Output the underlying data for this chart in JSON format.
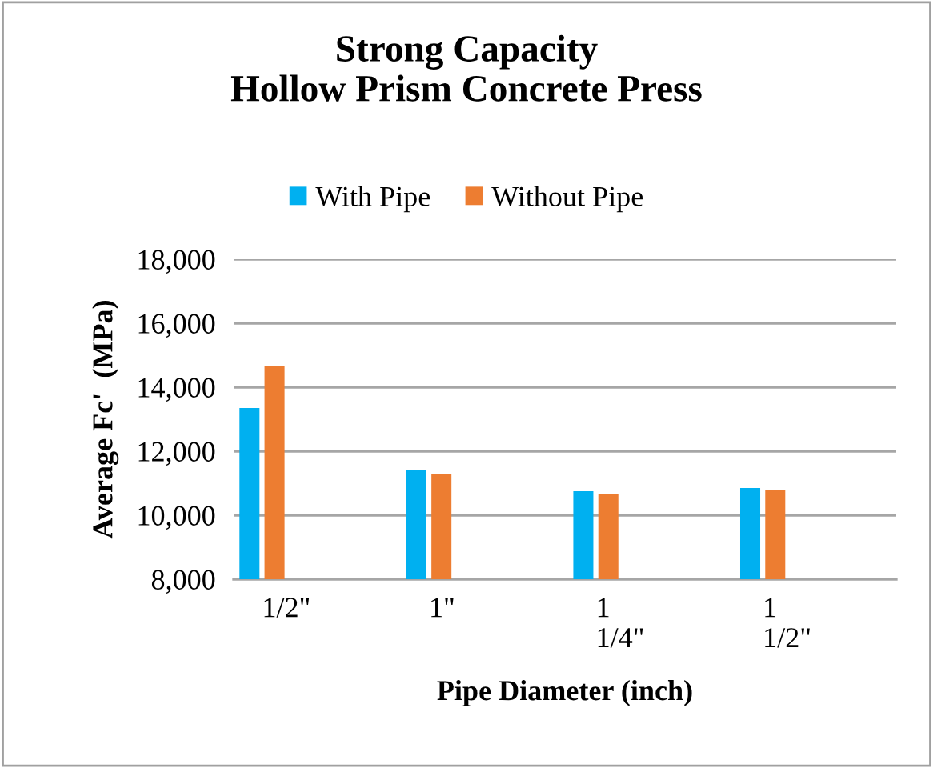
{
  "chart_data": {
    "type": "bar",
    "title": "Strong Capacity\nHollow Prism Concrete Press",
    "xlabel": "Pipe Diameter (inch)",
    "ylabel": "Average Fc'  (MPa)",
    "categories": [
      "1/2\"",
      "1\"",
      "1\n1/4\"",
      "1\n1/2\""
    ],
    "series": [
      {
        "name": "With Pipe",
        "color": "#00b0f0",
        "values": [
          13350,
          11400,
          10750,
          10850
        ]
      },
      {
        "name": "Without Pipe",
        "color": "#ed7d31",
        "values": [
          14650,
          11300,
          10650,
          10800
        ]
      }
    ],
    "ylim": [
      8000,
      18000
    ],
    "yticks": [
      {
        "value": 8000,
        "label": "8,000"
      },
      {
        "value": 10000,
        "label": "10,000"
      },
      {
        "value": 12000,
        "label": "12,000"
      },
      {
        "value": 14000,
        "label": "14,000"
      },
      {
        "value": 16000,
        "label": "16,000"
      },
      {
        "value": 18000,
        "label": "18,000"
      }
    ],
    "grid": "y",
    "legend": "top"
  }
}
